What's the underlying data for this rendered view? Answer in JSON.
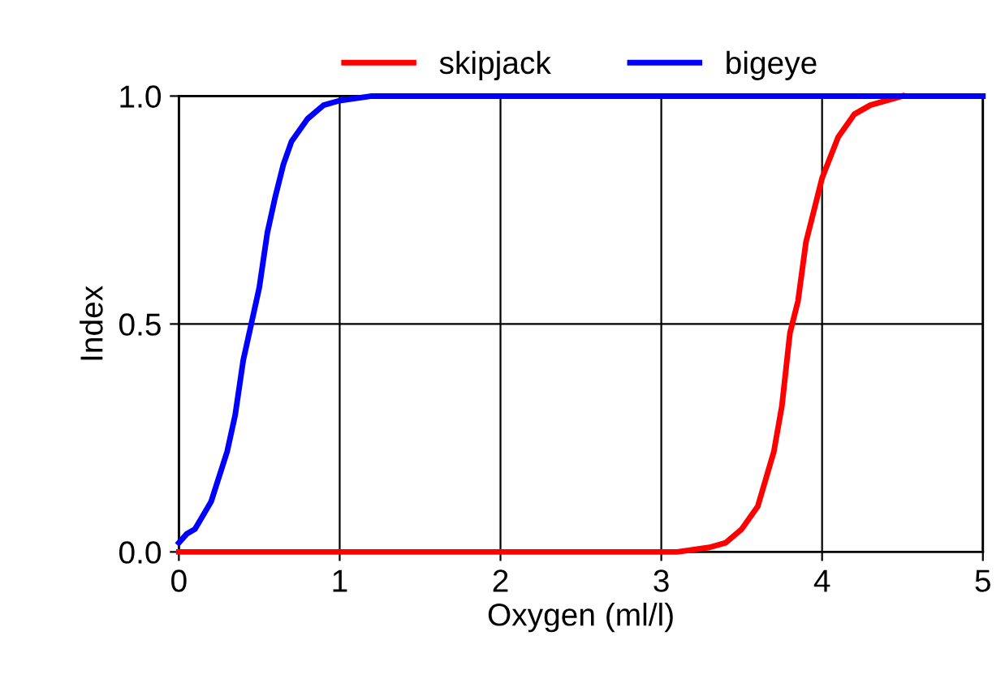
{
  "chart_data": {
    "type": "line",
    "xlabel": "Oxygen (ml/l)",
    "ylabel": "Index",
    "xlim": [
      0,
      5
    ],
    "ylim": [
      0,
      1
    ],
    "xticks": [
      0,
      1,
      2,
      3,
      4,
      5
    ],
    "yticks": [
      {
        "value": 0,
        "label": "0.0"
      },
      {
        "value": 0.5,
        "label": "0.5"
      },
      {
        "value": 1,
        "label": "1.0"
      }
    ],
    "grid": true,
    "legend": "top",
    "marker": "none",
    "line_style": "solid",
    "series": [
      {
        "name": "skipjack",
        "color": "#ff0000",
        "x": [
          0,
          3.1,
          3.3,
          3.4,
          3.5,
          3.6,
          3.7,
          3.75,
          3.8,
          3.85,
          3.9,
          4.0,
          4.1,
          4.2,
          4.3,
          4.5
        ],
        "values": [
          0,
          0,
          0.01,
          0.02,
          0.05,
          0.1,
          0.22,
          0.32,
          0.48,
          0.55,
          0.68,
          0.82,
          0.91,
          0.96,
          0.98,
          1.0
        ]
      },
      {
        "name": "bigeye",
        "color": "#0000ff",
        "x": [
          0,
          0.05,
          0.1,
          0.2,
          0.3,
          0.35,
          0.4,
          0.45,
          0.5,
          0.55,
          0.6,
          0.65,
          0.7,
          0.8,
          0.9,
          1.0,
          1.2,
          5
        ],
        "values": [
          0.02,
          0.04,
          0.05,
          0.11,
          0.22,
          0.3,
          0.42,
          0.5,
          0.58,
          0.7,
          0.78,
          0.85,
          0.9,
          0.95,
          0.98,
          0.99,
          1.0,
          1.0
        ]
      }
    ]
  }
}
